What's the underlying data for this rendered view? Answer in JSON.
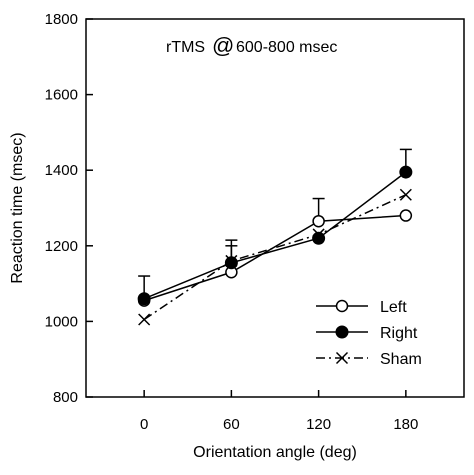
{
  "chart_data": {
    "type": "line",
    "annotation": {
      "prefix": "rTMS",
      "at": "@",
      "suffix": "600-800 msec"
    },
    "xlabel": "Orientation angle (deg)",
    "ylabel": "Reaction time (msec)",
    "x": [
      0,
      60,
      120,
      180
    ],
    "x_tick_labels": [
      "0",
      "60",
      "120",
      "180"
    ],
    "xlim": [
      -40,
      220
    ],
    "ylim": [
      800,
      1800
    ],
    "y_ticks": [
      800,
      1000,
      1200,
      1400,
      1600,
      1800
    ],
    "y_tick_labels": [
      "800",
      "1000",
      "1200",
      "1400",
      "1600",
      "1800"
    ],
    "grid": false,
    "legend_position": "bottom-right",
    "series": [
      {
        "name": "Left",
        "marker": "open-circle",
        "line": "solid",
        "values": [
          1055,
          1130,
          1265,
          1280
        ],
        "errors": [
          0,
          0,
          60,
          0
        ]
      },
      {
        "name": "Right",
        "marker": "filled-circle",
        "line": "solid",
        "values": [
          1060,
          1155,
          1220,
          1395
        ],
        "errors": [
          60,
          60,
          0,
          60
        ]
      },
      {
        "name": "Sham",
        "marker": "x",
        "line": "dash-dot",
        "values": [
          1005,
          1160,
          1230,
          1335
        ],
        "errors": [
          0,
          40,
          0,
          0
        ]
      }
    ]
  }
}
